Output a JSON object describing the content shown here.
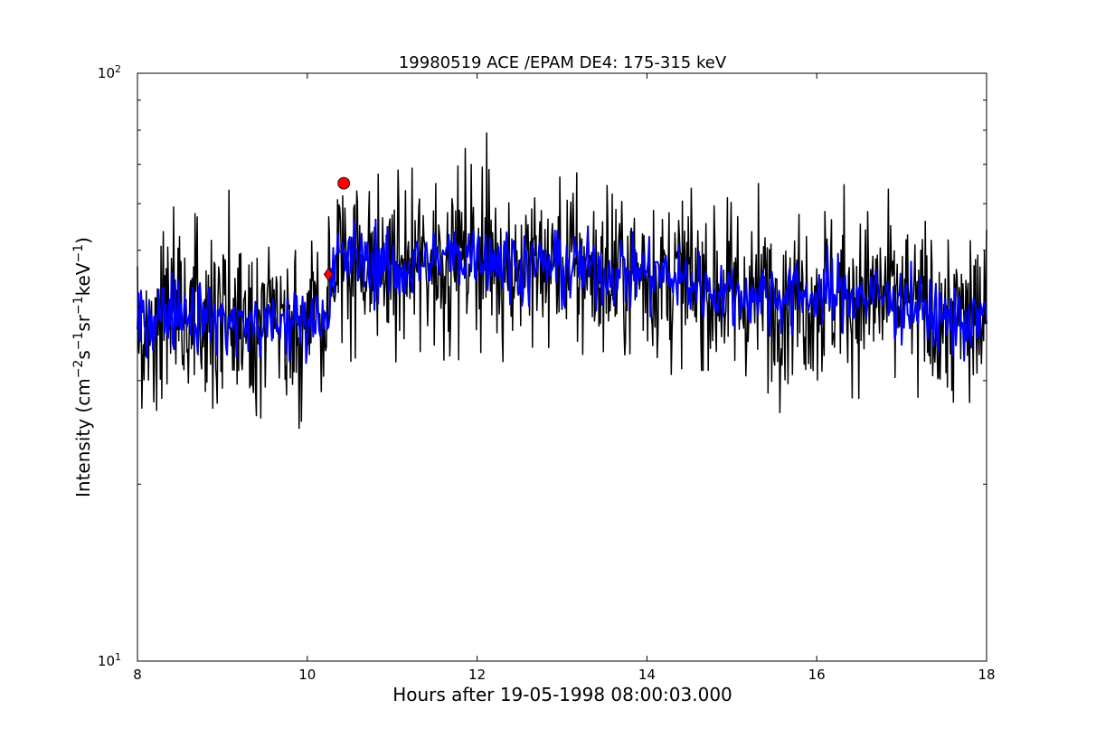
{
  "chart_data": {
    "type": "line",
    "title": "19980519 ACE /EPAM DE4: 175-315 keV",
    "xlabel": "Hours after 19-05-1998 08:00:03.000",
    "ylabel": {
      "prefix": "Intensity (cm",
      "parts": [
        {
          "text": "−2",
          "sup": true
        },
        {
          "text": "s",
          "sup": false
        },
        {
          "text": "−1",
          "sup": true
        },
        {
          "text": "sr",
          "sup": false
        },
        {
          "text": "−1",
          "sup": true
        },
        {
          "text": "keV",
          "sup": false
        },
        {
          "text": "−1",
          "sup": true
        },
        {
          "text": ")",
          "sup": false
        }
      ]
    },
    "xlim": [
      8,
      18
    ],
    "ylim": [
      10,
      100
    ],
    "yscale": "log",
    "grid": false,
    "xticks": [
      {
        "value": 8,
        "label": "8"
      },
      {
        "value": 10,
        "label": "10"
      },
      {
        "value": 12,
        "label": "12"
      },
      {
        "value": 14,
        "label": "14"
      },
      {
        "value": 16,
        "label": "16"
      },
      {
        "value": 18,
        "label": "18"
      }
    ],
    "yticks": [
      {
        "value": 10,
        "label": "10",
        "exponent": "1"
      },
      {
        "value": 100,
        "label": "10",
        "exponent": "2"
      }
    ],
    "series": [
      {
        "color": "#000000",
        "anchors": [
          [
            8.0,
            38
          ],
          [
            8.5,
            40
          ],
          [
            9.0,
            38
          ],
          [
            9.5,
            37
          ],
          [
            10.0,
            38
          ],
          [
            10.25,
            40
          ],
          [
            10.35,
            48
          ],
          [
            10.5,
            49
          ],
          [
            11.0,
            46
          ],
          [
            11.5,
            48
          ],
          [
            12.0,
            50
          ],
          [
            12.5,
            47
          ],
          [
            13.0,
            47
          ],
          [
            13.5,
            46
          ],
          [
            14.0,
            46
          ],
          [
            14.5,
            44
          ],
          [
            15.0,
            42
          ],
          [
            15.5,
            42
          ],
          [
            16.0,
            42
          ],
          [
            16.5,
            42
          ],
          [
            17.0,
            41
          ],
          [
            17.5,
            38
          ],
          [
            18.0,
            38
          ]
        ]
      },
      {
        "color": "#0000ff",
        "anchors": [
          [
            8.0,
            38
          ],
          [
            8.5,
            40
          ],
          [
            9.0,
            38
          ],
          [
            9.5,
            37
          ],
          [
            10.0,
            38
          ],
          [
            10.25,
            40
          ],
          [
            10.35,
            48
          ],
          [
            10.5,
            49
          ],
          [
            11.0,
            46
          ],
          [
            11.5,
            48
          ],
          [
            12.0,
            50
          ],
          [
            12.5,
            47
          ],
          [
            13.0,
            47
          ],
          [
            13.5,
            46
          ],
          [
            14.0,
            46
          ],
          [
            14.5,
            44
          ],
          [
            15.0,
            42
          ],
          [
            15.5,
            42
          ],
          [
            16.0,
            42
          ],
          [
            16.5,
            42
          ],
          [
            17.0,
            41
          ],
          [
            17.5,
            38
          ],
          [
            18.0,
            38
          ]
        ]
      }
    ],
    "markers": [
      {
        "shape": "circle",
        "x": 10.43,
        "y": 65,
        "color": "#ff0000"
      },
      {
        "shape": "diamond",
        "x": 10.25,
        "y": 45.5,
        "color": "#ff0000"
      }
    ]
  }
}
